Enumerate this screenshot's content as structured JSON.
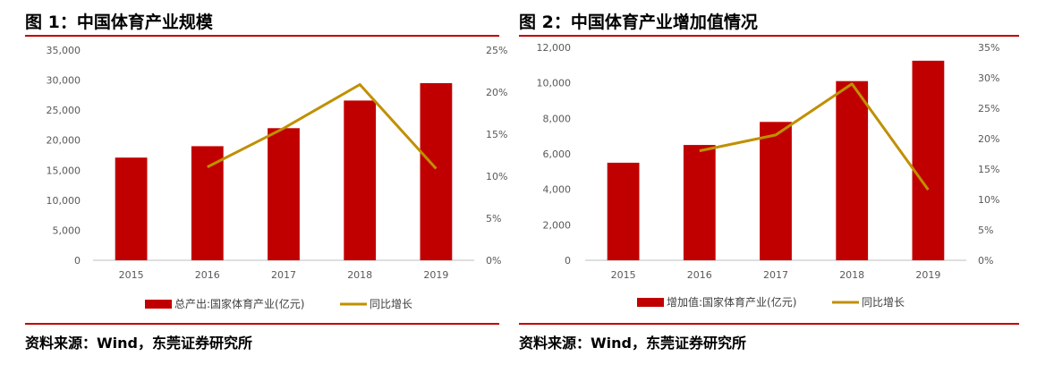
{
  "figures": [
    {
      "title": "图 1：中国体育产业规模",
      "source": "资料来源：Wind，东莞证券研究所"
    },
    {
      "title": "图 2：中国体育产业增加值情况",
      "source": "资料来源：Wind，东莞证券研究所"
    }
  ],
  "colors": {
    "bar": "#c00000",
    "line": "#c09000",
    "rule": "#c00000",
    "axis": "#bfbfbf"
  },
  "chart_data": [
    {
      "type": "bar",
      "categories": [
        "2015",
        "2016",
        "2017",
        "2018",
        "2019"
      ],
      "series": [
        {
          "name": "总产出:国家体育产业(亿元)",
          "type": "bar",
          "axis": "left",
          "values": [
            17100,
            19000,
            22000,
            26600,
            29500
          ]
        },
        {
          "name": "同比增长",
          "type": "line",
          "axis": "right",
          "values": [
            null,
            11.1,
            15.7,
            20.9,
            10.9
          ]
        }
      ],
      "y_left": {
        "min": 0,
        "max": 35000,
        "ticks": [
          "0",
          "5,000",
          "10,000",
          "15,000",
          "20,000",
          "25,000",
          "30,000",
          "35,000"
        ]
      },
      "y_right": {
        "min": 0,
        "max": 25,
        "ticks": [
          "0%",
          "5%",
          "10%",
          "15%",
          "20%",
          "25%"
        ]
      },
      "legend_position": "bottom",
      "grid": false
    },
    {
      "type": "bar",
      "categories": [
        "2015",
        "2016",
        "2017",
        "2018",
        "2019"
      ],
      "series": [
        {
          "name": "增加值:国家体育产业(亿元)",
          "type": "bar",
          "axis": "left",
          "values": [
            5500,
            6500,
            7800,
            10100,
            11250
          ]
        },
        {
          "name": "同比增长",
          "type": "line",
          "axis": "right",
          "values": [
            null,
            18.0,
            20.6,
            29.0,
            11.6
          ]
        }
      ],
      "y_left": {
        "min": 0,
        "max": 12000,
        "ticks": [
          "0",
          "2,000",
          "4,000",
          "6,000",
          "8,000",
          "10,000",
          "12,000"
        ]
      },
      "y_right": {
        "min": 0,
        "max": 35,
        "ticks": [
          "0%",
          "5%",
          "10%",
          "15%",
          "20%",
          "25%",
          "30%",
          "35%"
        ]
      },
      "legend_position": "bottom",
      "grid": false
    }
  ]
}
